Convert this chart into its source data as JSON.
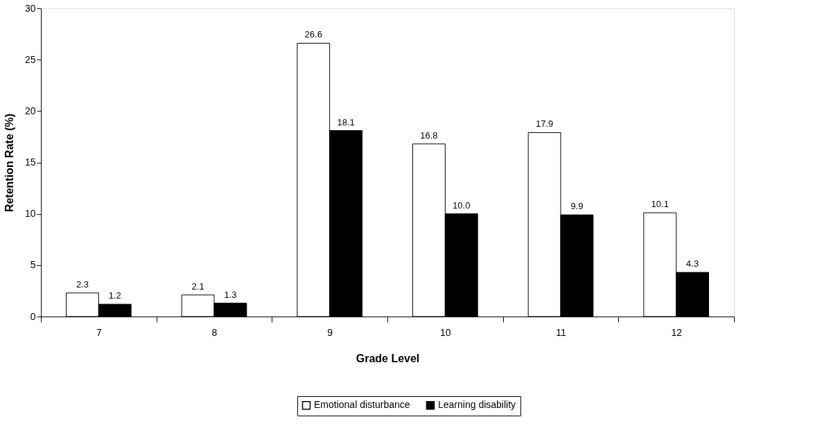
{
  "chart_data": {
    "type": "bar",
    "xlabel": "Grade Level",
    "ylabel": "Retention Rate (%)",
    "categories": [
      "7",
      "8",
      "9",
      "10",
      "11",
      "12"
    ],
    "series": [
      {
        "name": "Emotional disturbance",
        "color": "#ffffff",
        "values": [
          2.3,
          2.1,
          26.6,
          16.8,
          17.9,
          10.1
        ],
        "value_labels": [
          "2.3",
          "2.1",
          "26.6",
          "16.8",
          "17.9",
          "10.1"
        ]
      },
      {
        "name": "Learning disability",
        "color": "#000000",
        "values": [
          1.2,
          1.3,
          18.1,
          10.0,
          9.9,
          4.3
        ],
        "value_labels": [
          "1.2",
          "1.3",
          "18.1",
          "10.0",
          "9.9",
          "4.3"
        ]
      }
    ],
    "ylim": [
      0,
      30
    ],
    "yticks": [
      0,
      5,
      10,
      15,
      20,
      25,
      30
    ],
    "grid": false,
    "legend": "bottom"
  }
}
